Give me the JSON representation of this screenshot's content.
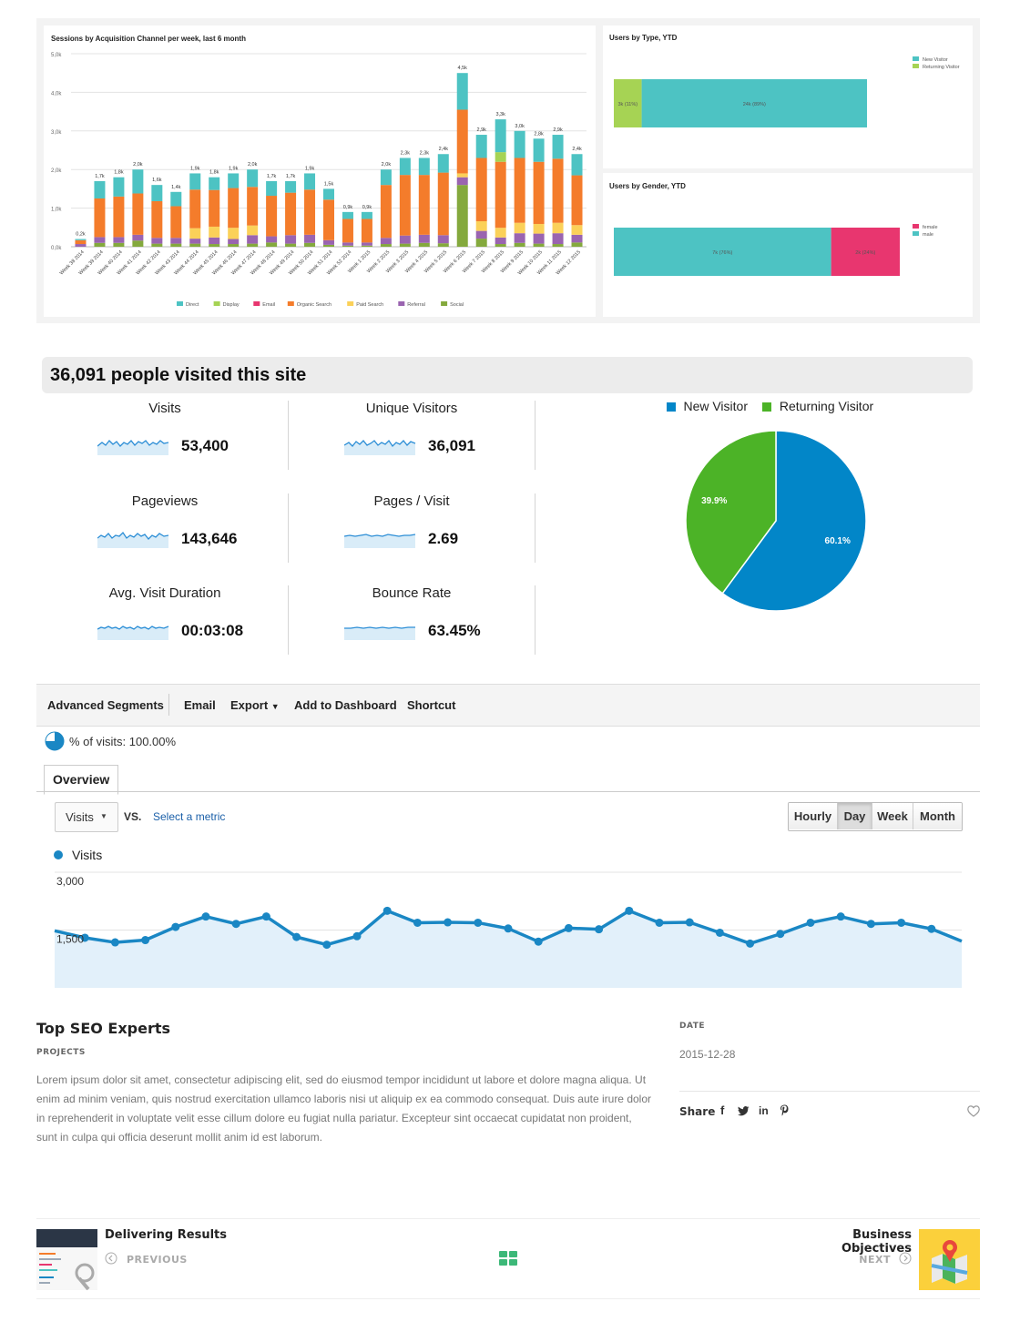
{
  "top_charts": {
    "sessions_chart": {
      "title": "Sessions by Acquisition Channel per week, last 6 month",
      "type": "bar",
      "ylim": [
        0,
        5000
      ],
      "yticks": [
        "0,0k",
        "1,0k",
        "2,0k",
        "3,0k",
        "4,0k",
        "5,0k"
      ],
      "categories": [
        "Week 38 2014",
        "Week 39 2014",
        "Week 40 2014",
        "Week 41 2014",
        "Week 42 2014",
        "Week 43 2014",
        "Week 44 2014",
        "Week 45 2014",
        "Week 46 2014",
        "Week 47 2014",
        "Week 48 2014",
        "Week 49 2014",
        "Week 50 2014",
        "Week 51 2014",
        "Week 52 2014",
        "Week 1 2015",
        "Week 2 2015",
        "Week 3 2015",
        "Week 4 2015",
        "Week 5 2015",
        "Week 6 2015",
        "Week 7 2015",
        "Week 8 2015",
        "Week 9 2015",
        "Week 10 2015",
        "Week 11 2015",
        "Week 12 2015"
      ],
      "total_labels": [
        "0,2k",
        "1,7k",
        "1,8k",
        "2,0k",
        "1,6k",
        "1,4k",
        "1,9k",
        "1,8k",
        "1,9k",
        "2,0k",
        "1,7k",
        "1,7k",
        "1,9k",
        "1,5k",
        "0,9k",
        "0,9k",
        "2,0k",
        "2,3k",
        "2,3k",
        "2,4k",
        "4,5k",
        "2,9k",
        "3,3k",
        "3,0k",
        "2,8k",
        "2,9k",
        "2,4k"
      ],
      "series": [
        {
          "name": "Direct",
          "color": "#4dc3c3",
          "values": [
            30,
            450,
            500,
            620,
            420,
            370,
            420,
            330,
            380,
            450,
            380,
            300,
            420,
            280,
            180,
            180,
            400,
            440,
            440,
            480,
            950,
            600,
            850,
            700,
            600,
            620,
            550
          ]
        },
        {
          "name": "Display",
          "color": "#a6d354",
          "values": [
            0,
            0,
            0,
            0,
            0,
            0,
            0,
            0,
            0,
            0,
            0,
            0,
            0,
            0,
            0,
            0,
            0,
            0,
            0,
            0,
            0,
            0,
            250,
            0,
            0,
            0,
            0
          ]
        },
        {
          "name": "Email",
          "color": "#e8366f",
          "values": [
            0,
            0,
            0,
            0,
            0,
            0,
            0,
            0,
            0,
            0,
            0,
            0,
            0,
            0,
            0,
            0,
            0,
            0,
            0,
            0,
            0,
            0,
            0,
            0,
            0,
            0,
            0
          ]
        },
        {
          "name": "Organic Search",
          "color": "#f47c2b",
          "values": [
            100,
            1000,
            1050,
            1070,
            950,
            820,
            1000,
            950,
            1030,
            1000,
            1050,
            1100,
            1170,
            1050,
            610,
            610,
            1370,
            1570,
            1550,
            1620,
            1650,
            1640,
            1710,
            1680,
            1610,
            1660,
            1290
          ]
        },
        {
          "name": "Paid Search",
          "color": "#fbd159",
          "values": [
            0,
            0,
            0,
            0,
            0,
            0,
            270,
            280,
            290,
            250,
            0,
            0,
            0,
            0,
            0,
            0,
            0,
            0,
            0,
            0,
            100,
            250,
            250,
            270,
            250,
            270,
            250
          ]
        },
        {
          "name": "Referral",
          "color": "#9a64b0",
          "values": [
            70,
            150,
            150,
            150,
            150,
            150,
            130,
            170,
            130,
            220,
            160,
            220,
            210,
            120,
            80,
            80,
            160,
            210,
            210,
            210,
            200,
            200,
            170,
            250,
            260,
            280,
            200
          ]
        },
        {
          "name": "Social",
          "color": "#84a93d",
          "values": [
            0,
            100,
            100,
            160,
            80,
            80,
            80,
            70,
            70,
            80,
            110,
            80,
            100,
            50,
            30,
            30,
            70,
            80,
            100,
            90,
            1600,
            210,
            70,
            100,
            80,
            70,
            110
          ]
        }
      ]
    },
    "users_by_type": {
      "title": "Users by Type, YTD",
      "segments": [
        {
          "name": "Returning Visitor",
          "label": "3k (11%)",
          "value": 11,
          "color": "#a6d354"
        },
        {
          "name": "New Visitor",
          "label": "24k (89%)",
          "value": 89,
          "color": "#4dc3c3"
        }
      ],
      "legend": [
        {
          "name": "New Visitor",
          "color": "#4dc3c3"
        },
        {
          "name": "Returning Visitor",
          "color": "#a6d354"
        }
      ]
    },
    "users_by_gender": {
      "title": "Users by Gender, YTD",
      "segments": [
        {
          "name": "male",
          "label": "7k (76%)",
          "value": 76,
          "color": "#4dc3c3"
        },
        {
          "name": "female",
          "label": "2k (24%)",
          "value": 24,
          "color": "#e8366f"
        }
      ],
      "legend": [
        {
          "name": "female",
          "color": "#e8366f"
        },
        {
          "name": "male",
          "color": "#4dc3c3"
        }
      ]
    }
  },
  "headline": "36,091 people visited this site",
  "stats": [
    {
      "label": "Visits",
      "value": "53,400"
    },
    {
      "label": "Unique Visitors",
      "value": "36,091"
    },
    {
      "label": "Pageviews",
      "value": "143,646"
    },
    {
      "label": "Pages / Visit",
      "value": "2.69"
    },
    {
      "label": "Avg. Visit Duration",
      "value": "00:03:08"
    },
    {
      "label": "Bounce Rate",
      "value": "63.45%"
    }
  ],
  "pie": {
    "legend": [
      {
        "name": "New Visitor",
        "color": "#0286c8"
      },
      {
        "name": "Returning Visitor",
        "color": "#4cb327"
      }
    ],
    "slices": [
      {
        "name": "New Visitor",
        "value": 60.1,
        "label": "60.1%",
        "color": "#0286c8"
      },
      {
        "name": "Returning Visitor",
        "value": 39.9,
        "label": "39.9%",
        "color": "#4cb327"
      }
    ]
  },
  "toolbar": {
    "advanced_segments": "Advanced Segments",
    "email": "Email",
    "export": "Export",
    "add_to_dashboard": "Add to Dashboard",
    "shortcut": "Shortcut"
  },
  "segment_text": "% of visits: 100.00%",
  "overview_tab": "Overview",
  "metric_select": "Visits",
  "vs_label": "VS.",
  "select_metric": "Select a metric",
  "granularity": [
    "Hourly",
    "Day",
    "Week",
    "Month"
  ],
  "granularity_selected": "Day",
  "line_chart": {
    "type": "line",
    "series_name": "Visits",
    "color": "#1a87c4",
    "ylabels": [
      "3,000",
      "1,500"
    ],
    "ylim": [
      0,
      3000
    ],
    "values": [
      1480,
      1300,
      1180,
      1240,
      1580,
      1850,
      1660,
      1850,
      1320,
      1120,
      1340,
      2000,
      1690,
      1700,
      1690,
      1540,
      1200,
      1550,
      1520,
      2000,
      1690,
      1700,
      1430,
      1150,
      1400,
      1690,
      1850,
      1660,
      1690,
      1530,
      1210
    ]
  },
  "article": {
    "title": "Top SEO Experts",
    "category": "PROJECTS",
    "body": "Lorem ipsum dolor sit amet, consectetur adipiscing elit, sed do eiusmod tempor incididunt ut labore et dolore magna aliqua. Ut enim ad minim veniam, quis nostrud exercitation ullamco laboris nisi ut aliquip ex ea commodo consequat. Duis aute irure dolor in reprehenderit in voluptate velit esse cillum dolore eu fugiat nulla pariatur. Excepteur sint occaecat cupidatat non proident, sunt in culpa qui officia deserunt mollit anim id est laborum.",
    "date_label": "DATE",
    "date": "2015-12-28",
    "share_label": "Share"
  },
  "nav": {
    "prev_title": "Delivering Results",
    "prev_label": "PREVIOUS",
    "next_title": "Business Objectives",
    "next_label": "NEXT"
  }
}
